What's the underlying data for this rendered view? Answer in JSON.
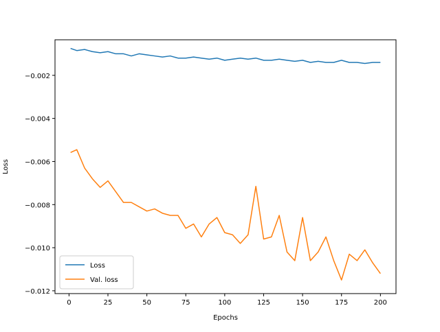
{
  "chart_data": {
    "type": "line",
    "title": "",
    "xlabel": "Epochs",
    "ylabel": "Loss",
    "xlim": [
      -9,
      210
    ],
    "ylim": [
      -0.01213,
      -0.00035
    ],
    "xticks": [
      0,
      25,
      50,
      75,
      100,
      125,
      150,
      175,
      200
    ],
    "xtick_labels": [
      "0",
      "25",
      "50",
      "75",
      "100",
      "125",
      "150",
      "175",
      "200"
    ],
    "yticks": [
      -0.012,
      -0.01,
      -0.008,
      -0.006,
      -0.004,
      -0.002
    ],
    "ytick_labels": [
      "−0.012",
      "−0.010",
      "−0.008",
      "−0.006",
      "−0.004",
      "−0.002"
    ],
    "grid": false,
    "legend_position": "lower-left",
    "x": [
      1,
      5,
      10,
      15,
      20,
      25,
      30,
      35,
      40,
      45,
      50,
      55,
      60,
      65,
      70,
      75,
      80,
      85,
      90,
      95,
      100,
      105,
      110,
      115,
      120,
      125,
      130,
      135,
      140,
      145,
      150,
      155,
      160,
      165,
      170,
      175,
      180,
      185,
      190,
      195,
      200
    ],
    "series": [
      {
        "name": "Loss",
        "color": "#1f77b4",
        "values": [
          -0.00075,
          -0.00085,
          -0.0008,
          -0.0009,
          -0.00095,
          -0.0009,
          -0.001,
          -0.001,
          -0.0011,
          -0.001,
          -0.00105,
          -0.0011,
          -0.00115,
          -0.0011,
          -0.0012,
          -0.0012,
          -0.00115,
          -0.0012,
          -0.00125,
          -0.0012,
          -0.0013,
          -0.00125,
          -0.0012,
          -0.00125,
          -0.0012,
          -0.0013,
          -0.0013,
          -0.00125,
          -0.0013,
          -0.00135,
          -0.0013,
          -0.0014,
          -0.00135,
          -0.0014,
          -0.0014,
          -0.0013,
          -0.0014,
          -0.0014,
          -0.00145,
          -0.0014,
          -0.0014
        ]
      },
      {
        "name": "Val. loss",
        "color": "#ff7f0e",
        "values": [
          -0.00558,
          -0.00545,
          -0.0063,
          -0.0068,
          -0.0072,
          -0.0069,
          -0.0074,
          -0.0079,
          -0.0079,
          -0.0081,
          -0.0083,
          -0.0082,
          -0.0084,
          -0.0085,
          -0.0085,
          -0.0091,
          -0.0089,
          -0.0095,
          -0.0089,
          -0.0086,
          -0.0093,
          -0.0094,
          -0.0098,
          -0.0094,
          -0.00715,
          -0.0096,
          -0.0095,
          -0.0085,
          -0.0102,
          -0.0106,
          -0.0086,
          -0.0106,
          -0.0102,
          -0.0095,
          -0.0106,
          -0.0115,
          -0.0103,
          -0.0106,
          -0.0101,
          -0.0107,
          -0.0112
        ]
      }
    ]
  }
}
